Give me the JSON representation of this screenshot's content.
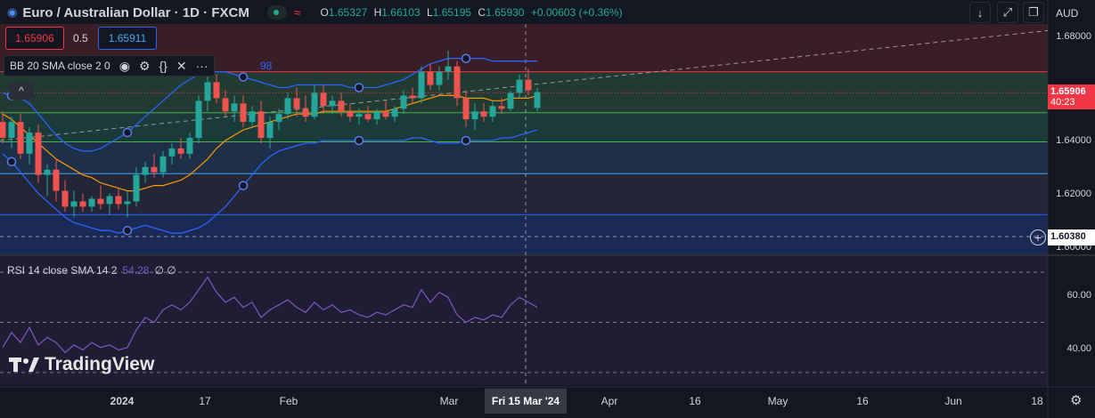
{
  "header": {
    "symbol_title": "Euro / Australian Dollar · 1D · FXCM",
    "ohlc": [
      {
        "key": "O",
        "value": "1.65327"
      },
      {
        "key": "H",
        "value": "1.66103"
      },
      {
        "key": "L",
        "value": "1.65195"
      },
      {
        "key": "C",
        "value": "1.65930"
      },
      {
        "key": "",
        "value": "+0.00603 (+0.36%)"
      }
    ],
    "currency": "AUD"
  },
  "trade": {
    "sell_price": "1.65906",
    "spread": "0.5",
    "buy_price": "1.65911"
  },
  "indicators": {
    "bb_label": "BB 20 SMA close 2 0",
    "bb_hidden_value": "98",
    "rsi_label": "RSI 14 close SMA 14 2",
    "rsi_value": "54.28",
    "rsi_extra": "∅ ∅"
  },
  "price_axis": {
    "labels": [
      "1.68000",
      "1.64000",
      "1.62000",
      "1.60000"
    ],
    "current_price": "1.65906",
    "countdown": "40:23",
    "hover_price": "1.60380",
    "rsi_labels": [
      "60.00",
      "40.00"
    ]
  },
  "time_axis": {
    "labels": [
      "2024",
      "17",
      "Feb",
      "Mar",
      "Apr",
      "16",
      "May",
      "16",
      "Jun",
      "18"
    ],
    "crosshair_label": "Fri 15 Mar '24"
  },
  "branding": {
    "logo_text": "TradingView"
  },
  "colors": {
    "background": "#131722",
    "up": "#26a69a",
    "down": "#ef5350",
    "bb_band": "#2962ff",
    "sma": "#ff9800",
    "rsi": "#7e57c2",
    "accent_red": "#f23645"
  },
  "chart_data": {
    "type": "candlestick",
    "ylim": [
      1.598,
      1.685
    ],
    "candles": [
      {
        "o": 1.648,
        "h": 1.652,
        "l": 1.64,
        "c": 1.642
      },
      {
        "o": 1.642,
        "h": 1.65,
        "l": 1.638,
        "c": 1.648
      },
      {
        "o": 1.648,
        "h": 1.651,
        "l": 1.634,
        "c": 1.636
      },
      {
        "o": 1.636,
        "h": 1.646,
        "l": 1.632,
        "c": 1.644
      },
      {
        "o": 1.644,
        "h": 1.647,
        "l": 1.625,
        "c": 1.628
      },
      {
        "o": 1.628,
        "h": 1.632,
        "l": 1.62,
        "c": 1.63
      },
      {
        "o": 1.63,
        "h": 1.634,
        "l": 1.618,
        "c": 1.622
      },
      {
        "o": 1.622,
        "h": 1.626,
        "l": 1.614,
        "c": 1.616
      },
      {
        "o": 1.616,
        "h": 1.622,
        "l": 1.612,
        "c": 1.618
      },
      {
        "o": 1.618,
        "h": 1.621,
        "l": 1.614,
        "c": 1.616
      },
      {
        "o": 1.616,
        "h": 1.62,
        "l": 1.614,
        "c": 1.619
      },
      {
        "o": 1.619,
        "h": 1.624,
        "l": 1.615,
        "c": 1.617
      },
      {
        "o": 1.617,
        "h": 1.621,
        "l": 1.613,
        "c": 1.62
      },
      {
        "o": 1.62,
        "h": 1.623,
        "l": 1.615,
        "c": 1.617
      },
      {
        "o": 1.617,
        "h": 1.622,
        "l": 1.612,
        "c": 1.618
      },
      {
        "o": 1.618,
        "h": 1.631,
        "l": 1.616,
        "c": 1.628
      },
      {
        "o": 1.628,
        "h": 1.633,
        "l": 1.625,
        "c": 1.631
      },
      {
        "o": 1.631,
        "h": 1.636,
        "l": 1.627,
        "c": 1.629
      },
      {
        "o": 1.629,
        "h": 1.637,
        "l": 1.627,
        "c": 1.635
      },
      {
        "o": 1.635,
        "h": 1.64,
        "l": 1.632,
        "c": 1.638
      },
      {
        "o": 1.638,
        "h": 1.642,
        "l": 1.634,
        "c": 1.636
      },
      {
        "o": 1.636,
        "h": 1.644,
        "l": 1.634,
        "c": 1.642
      },
      {
        "o": 1.642,
        "h": 1.658,
        "l": 1.64,
        "c": 1.656
      },
      {
        "o": 1.656,
        "h": 1.666,
        "l": 1.652,
        "c": 1.663
      },
      {
        "o": 1.663,
        "h": 1.666,
        "l": 1.655,
        "c": 1.657
      },
      {
        "o": 1.657,
        "h": 1.66,
        "l": 1.65,
        "c": 1.652
      },
      {
        "o": 1.652,
        "h": 1.658,
        "l": 1.648,
        "c": 1.655
      },
      {
        "o": 1.655,
        "h": 1.658,
        "l": 1.646,
        "c": 1.648
      },
      {
        "o": 1.648,
        "h": 1.654,
        "l": 1.646,
        "c": 1.652
      },
      {
        "o": 1.652,
        "h": 1.656,
        "l": 1.64,
        "c": 1.642
      },
      {
        "o": 1.642,
        "h": 1.65,
        "l": 1.638,
        "c": 1.648
      },
      {
        "o": 1.648,
        "h": 1.653,
        "l": 1.645,
        "c": 1.651
      },
      {
        "o": 1.651,
        "h": 1.659,
        "l": 1.649,
        "c": 1.657
      },
      {
        "o": 1.657,
        "h": 1.661,
        "l": 1.65,
        "c": 1.653
      },
      {
        "o": 1.653,
        "h": 1.658,
        "l": 1.648,
        "c": 1.65
      },
      {
        "o": 1.65,
        "h": 1.662,
        "l": 1.649,
        "c": 1.659
      },
      {
        "o": 1.659,
        "h": 1.662,
        "l": 1.651,
        "c": 1.654
      },
      {
        "o": 1.654,
        "h": 1.658,
        "l": 1.651,
        "c": 1.656
      },
      {
        "o": 1.656,
        "h": 1.659,
        "l": 1.65,
        "c": 1.652
      },
      {
        "o": 1.652,
        "h": 1.655,
        "l": 1.648,
        "c": 1.65
      },
      {
        "o": 1.65,
        "h": 1.653,
        "l": 1.647,
        "c": 1.651
      },
      {
        "o": 1.651,
        "h": 1.654,
        "l": 1.648,
        "c": 1.649
      },
      {
        "o": 1.649,
        "h": 1.653,
        "l": 1.647,
        "c": 1.652
      },
      {
        "o": 1.652,
        "h": 1.656,
        "l": 1.649,
        "c": 1.65
      },
      {
        "o": 1.65,
        "h": 1.654,
        "l": 1.648,
        "c": 1.653
      },
      {
        "o": 1.653,
        "h": 1.66,
        "l": 1.651,
        "c": 1.658
      },
      {
        "o": 1.658,
        "h": 1.661,
        "l": 1.655,
        "c": 1.657
      },
      {
        "o": 1.657,
        "h": 1.669,
        "l": 1.655,
        "c": 1.667
      },
      {
        "o": 1.667,
        "h": 1.67,
        "l": 1.66,
        "c": 1.662
      },
      {
        "o": 1.662,
        "h": 1.669,
        "l": 1.66,
        "c": 1.667
      },
      {
        "o": 1.667,
        "h": 1.675,
        "l": 1.664,
        "c": 1.669
      },
      {
        "o": 1.669,
        "h": 1.671,
        "l": 1.654,
        "c": 1.657
      },
      {
        "o": 1.657,
        "h": 1.66,
        "l": 1.646,
        "c": 1.649
      },
      {
        "o": 1.649,
        "h": 1.655,
        "l": 1.645,
        "c": 1.652
      },
      {
        "o": 1.652,
        "h": 1.655,
        "l": 1.648,
        "c": 1.65
      },
      {
        "o": 1.65,
        "h": 1.656,
        "l": 1.648,
        "c": 1.654
      },
      {
        "o": 1.654,
        "h": 1.657,
        "l": 1.651,
        "c": 1.653
      },
      {
        "o": 1.653,
        "h": 1.66,
        "l": 1.652,
        "c": 1.659
      },
      {
        "o": 1.659,
        "h": 1.666,
        "l": 1.657,
        "c": 1.664
      },
      {
        "o": 1.664,
        "h": 1.668,
        "l": 1.658,
        "c": 1.66
      },
      {
        "o": 1.6533,
        "h": 1.661,
        "l": 1.652,
        "c": 1.6593
      }
    ],
    "bb_upper": [
      1.659,
      1.658,
      1.657,
      1.655,
      1.651,
      1.647,
      1.643,
      1.64,
      1.638,
      1.637,
      1.637,
      1.638,
      1.64,
      1.642,
      1.644,
      1.647,
      1.65,
      1.653,
      1.656,
      1.659,
      1.662,
      1.664,
      1.666,
      1.667,
      1.667,
      1.667,
      1.666,
      1.665,
      1.664,
      1.663,
      1.662,
      1.661,
      1.661,
      1.662,
      1.662,
      1.662,
      1.662,
      1.662,
      1.662,
      1.661,
      1.661,
      1.661,
      1.661,
      1.662,
      1.663,
      1.664,
      1.666,
      1.668,
      1.67,
      1.671,
      1.672,
      1.672,
      1.672,
      1.672,
      1.672,
      1.671,
      1.671,
      1.671,
      1.671,
      1.671,
      1.671
    ],
    "bb_lower": [
      1.636,
      1.633,
      1.629,
      1.625,
      1.621,
      1.618,
      1.615,
      1.612,
      1.61,
      1.609,
      1.608,
      1.607,
      1.607,
      1.606,
      1.607,
      1.608,
      1.609,
      1.608,
      1.607,
      1.606,
      1.606,
      1.607,
      1.608,
      1.61,
      1.613,
      1.616,
      1.62,
      1.624,
      1.628,
      1.632,
      1.635,
      1.637,
      1.638,
      1.639,
      1.64,
      1.64,
      1.641,
      1.641,
      1.641,
      1.641,
      1.641,
      1.641,
      1.641,
      1.641,
      1.641,
      1.641,
      1.642,
      1.642,
      1.641,
      1.64,
      1.64,
      1.64,
      1.641,
      1.641,
      1.641,
      1.641,
      1.642,
      1.642,
      1.643,
      1.644,
      1.645
    ],
    "sma": [
      1.651,
      1.649,
      1.646,
      1.643,
      1.64,
      1.637,
      1.634,
      1.632,
      1.63,
      1.628,
      1.627,
      1.625,
      1.624,
      1.623,
      1.622,
      1.622,
      1.623,
      1.624,
      1.624,
      1.625,
      1.626,
      1.628,
      1.631,
      1.634,
      1.638,
      1.641,
      1.643,
      1.645,
      1.646,
      1.647,
      1.648,
      1.649,
      1.65,
      1.651,
      1.651,
      1.651,
      1.652,
      1.652,
      1.652,
      1.652,
      1.652,
      1.652,
      1.652,
      1.652,
      1.653,
      1.654,
      1.655,
      1.656,
      1.657,
      1.658,
      1.658,
      1.658,
      1.657,
      1.657,
      1.657,
      1.656,
      1.656,
      1.657,
      1.657,
      1.657,
      1.658
    ],
    "rsi": [
      40,
      46,
      42,
      48,
      41,
      44,
      42,
      38,
      41,
      39,
      42,
      40,
      41,
      39,
      40,
      47,
      52,
      50,
      55,
      57,
      55,
      58,
      63,
      68,
      62,
      58,
      60,
      56,
      58,
      52,
      55,
      57,
      59,
      56,
      54,
      58,
      55,
      57,
      54,
      55,
      53,
      52,
      54,
      53,
      55,
      57,
      56,
      63,
      58,
      62,
      60,
      53,
      50,
      52,
      51,
      53,
      52,
      57,
      60,
      58,
      56
    ],
    "hlines": [
      {
        "value": 1.667,
        "color": "#f23645"
      },
      {
        "value": 1.6515,
        "color": "#4caf50"
      },
      {
        "value": 1.6405,
        "color": "#4caf50"
      },
      {
        "value": 1.6285,
        "color": "#42a5f5"
      },
      {
        "value": 1.613,
        "color": "#2962ff"
      }
    ]
  }
}
